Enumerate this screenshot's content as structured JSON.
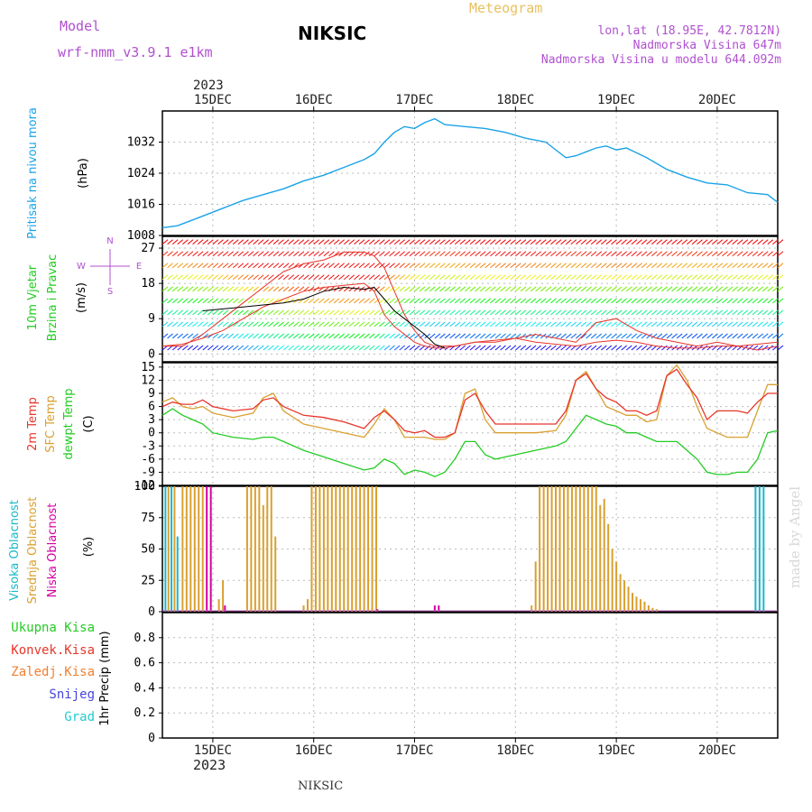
{
  "header": {
    "model_label": "Model",
    "model_value": "wrf-nmm_v3.9.1 e1km",
    "station": "NIKSIC",
    "meteogram": "Meteogram",
    "coords": "lon,lat (18.95E, 42.7812N)",
    "elevation": "Nadmorska Visina 647m",
    "model_elevation": "Nadmorska Visina u modelu 644.092m",
    "watermark": "made by Angel",
    "footer_station": "NIKSIC"
  },
  "colors": {
    "pressure": "#1aa3e8",
    "temp2m": "#e8352a",
    "sfc_temp": "#d9a030",
    "dewpoint": "#22cc22",
    "high_cloud": "#1ab8c8",
    "mid_cloud": "#d9a030",
    "low_cloud": "#d400a0",
    "total_precip": "#22cc22",
    "conv_precip": "#e8352a",
    "frozen_precip": "#f08030",
    "snow": "#4444dd",
    "hail": "#22cccc",
    "purple_text": "#b050d0",
    "gold_text": "#e8c060"
  },
  "chart_data": [
    {
      "type": "line",
      "id": "pressure",
      "ylabel_left": "Pritisak na nivou mora",
      "unit": "(hPa)",
      "ylim": [
        1008,
        1040
      ],
      "yticks": [
        1008,
        1016,
        1024,
        1032
      ],
      "x_unit": "days since 15DEC 00UTC",
      "series": [
        {
          "name": "Pritisak",
          "x": [
            -0.5,
            -0.35,
            -0.2,
            -0.05,
            0.1,
            0.3,
            0.5,
            0.7,
            0.9,
            1.1,
            1.3,
            1.5,
            1.6,
            1.7,
            1.8,
            1.9,
            2.0,
            2.1,
            2.2,
            2.3,
            2.5,
            2.7,
            2.9,
            3.1,
            3.3,
            3.5,
            3.6,
            3.7,
            3.8,
            3.9,
            4.0,
            4.1,
            4.3,
            4.5,
            4.7,
            4.9,
            5.1,
            5.3,
            5.5,
            5.6
          ],
          "values": [
            1010,
            1010.5,
            1012,
            1013.5,
            1015,
            1017,
            1018.5,
            1020,
            1022,
            1023.5,
            1025.5,
            1027.5,
            1029,
            1032,
            1034.5,
            1036,
            1035.5,
            1037,
            1038,
            1036.5,
            1036,
            1035.5,
            1034.5,
            1033,
            1032,
            1028,
            1028.5,
            1029.5,
            1030.5,
            1031,
            1030,
            1030.5,
            1028,
            1025,
            1023,
            1021.5,
            1021,
            1019,
            1018.5,
            1016.5
          ]
        }
      ]
    },
    {
      "type": "line",
      "id": "wind",
      "ylabel_left_1": "10m Vjetar",
      "ylabel_left_2": "Brzina i Pravac",
      "unit": "(m/s)",
      "compass": {
        "n": "N",
        "s": "S",
        "w": "W",
        "e": "E"
      },
      "ylim": [
        -2,
        30
      ],
      "yticks": [
        0,
        9,
        18,
        27
      ],
      "series": [
        {
          "name": "speed",
          "x": [
            -0.5,
            -0.3,
            -0.1,
            0.1,
            0.3,
            0.5,
            0.7,
            0.9,
            1.1,
            1.3,
            1.5,
            1.6,
            1.7,
            1.8,
            1.9,
            2.0,
            2.1,
            2.2,
            2.3,
            2.4,
            2.6,
            2.8,
            3.0,
            3.2,
            3.4,
            3.6,
            3.8,
            4.0,
            4.2,
            4.4,
            4.6,
            4.8,
            5.0,
            5.2,
            5.4,
            5.6
          ],
          "values": [
            2,
            2.5,
            4,
            6,
            9,
            12,
            14,
            16,
            17,
            17.5,
            18,
            16,
            10,
            7,
            5,
            3,
            2,
            1.5,
            1.5,
            2,
            3,
            3.5,
            4,
            3,
            2.5,
            2,
            3,
            3.5,
            3,
            2,
            1.5,
            1.5,
            2,
            2,
            2.5,
            3
          ]
        },
        {
          "name": "gust",
          "x": [
            -0.5,
            -0.3,
            -0.1,
            0.1,
            0.3,
            0.5,
            0.7,
            0.9,
            1.1,
            1.3,
            1.5,
            1.6,
            1.7,
            1.8,
            1.9,
            2.0,
            2.1,
            2.2,
            2.4,
            2.6,
            2.8,
            3.0,
            3.2,
            3.4,
            3.6,
            3.8,
            4.0,
            4.2,
            4.4,
            4.6,
            4.8,
            5.0,
            5.2,
            5.4,
            5.6
          ],
          "values": [
            2,
            2,
            5,
            9,
            13,
            17,
            21,
            23,
            24,
            26,
            26,
            25,
            22,
            16,
            10,
            6,
            3,
            2,
            2,
            3,
            3,
            4,
            5,
            4,
            3,
            8,
            9,
            6,
            4,
            3,
            2,
            3,
            2,
            1,
            2
          ]
        },
        {
          "name": "model_mean",
          "x": [
            -0.1,
            0.1,
            0.3,
            0.5,
            0.7,
            0.9,
            1.1,
            1.3,
            1.5,
            1.6,
            1.7,
            1.8,
            1.9,
            2.0,
            2.1,
            2.2,
            2.3
          ],
          "values": [
            11,
            11.5,
            12,
            12.5,
            13,
            14,
            16,
            17,
            16.5,
            17,
            14,
            11,
            9,
            7,
            5,
            2.5,
            1.5
          ]
        }
      ]
    },
    {
      "type": "line",
      "id": "temperature",
      "ylabel_left_1": "2m Temp",
      "ylabel_left_2": "SFC Temp",
      "ylabel_left_3": "dewpt Temp",
      "unit": "(C)",
      "ylim": [
        -12,
        16
      ],
      "yticks": [
        -12,
        -9,
        -6,
        -3,
        0,
        3,
        6,
        9,
        12,
        15
      ],
      "series": [
        {
          "name": "2m Temp",
          "x": [
            -0.5,
            -0.4,
            -0.3,
            -0.2,
            -0.1,
            0.0,
            0.2,
            0.4,
            0.5,
            0.6,
            0.7,
            0.9,
            1.1,
            1.3,
            1.5,
            1.6,
            1.7,
            1.8,
            1.9,
            2.0,
            2.1,
            2.2,
            2.3,
            2.4,
            2.5,
            2.6,
            2.7,
            2.8,
            3.0,
            3.2,
            3.4,
            3.5,
            3.6,
            3.7,
            3.8,
            3.9,
            4.0,
            4.1,
            4.2,
            4.3,
            4.4,
            4.5,
            4.6,
            4.7,
            4.8,
            4.9,
            5.0,
            5.1,
            5.2,
            5.3,
            5.4,
            5.5,
            5.6
          ],
          "values": [
            6,
            7,
            6.5,
            6.5,
            7.5,
            6,
            5,
            5.5,
            7.5,
            8,
            6,
            4,
            3.5,
            2.5,
            1,
            3.5,
            5,
            3,
            0.5,
            0,
            0.5,
            -1,
            -1,
            0,
            7.5,
            9,
            5,
            2,
            2,
            2,
            2,
            5,
            12,
            13.5,
            10,
            8,
            7,
            5,
            5,
            4,
            5,
            13,
            14.5,
            11,
            8,
            3,
            5,
            5,
            5,
            4.5,
            7,
            9,
            9
          ]
        },
        {
          "name": "SFC Temp",
          "x": [
            -0.5,
            -0.4,
            -0.3,
            -0.2,
            -0.1,
            0.0,
            0.2,
            0.4,
            0.5,
            0.6,
            0.7,
            0.9,
            1.1,
            1.3,
            1.5,
            1.6,
            1.7,
            1.8,
            1.9,
            2.0,
            2.1,
            2.2,
            2.3,
            2.4,
            2.5,
            2.6,
            2.7,
            2.8,
            3.0,
            3.2,
            3.4,
            3.5,
            3.6,
            3.7,
            3.8,
            3.9,
            4.0,
            4.1,
            4.2,
            4.3,
            4.4,
            4.5,
            4.6,
            4.7,
            4.8,
            4.9,
            5.0,
            5.1,
            5.2,
            5.3,
            5.4,
            5.5,
            5.6
          ],
          "values": [
            7,
            8,
            6,
            5.5,
            6,
            4.5,
            3.5,
            4.5,
            8,
            9,
            5,
            2,
            1,
            0,
            -1,
            2,
            5.5,
            3,
            -1,
            -1,
            -1,
            -1.5,
            -1.5,
            0,
            9,
            10,
            3,
            0,
            0,
            0,
            0.5,
            4,
            12,
            14,
            10,
            6,
            5,
            4,
            4,
            2.5,
            3,
            13,
            15.5,
            12,
            6,
            1,
            0,
            -1,
            -1,
            -1,
            5,
            11,
            11
          ]
        },
        {
          "name": "dewpt Temp",
          "x": [
            -0.5,
            -0.4,
            -0.3,
            -0.2,
            -0.1,
            0.0,
            0.2,
            0.4,
            0.5,
            0.6,
            0.7,
            0.9,
            1.1,
            1.3,
            1.5,
            1.6,
            1.7,
            1.8,
            1.9,
            2.0,
            2.1,
            2.2,
            2.3,
            2.4,
            2.5,
            2.6,
            2.7,
            2.8,
            3.0,
            3.2,
            3.4,
            3.5,
            3.6,
            3.7,
            3.8,
            3.9,
            4.0,
            4.1,
            4.2,
            4.3,
            4.4,
            4.5,
            4.6,
            4.7,
            4.8,
            4.9,
            5.0,
            5.1,
            5.2,
            5.3,
            5.4,
            5.5,
            5.6
          ],
          "values": [
            4,
            5.5,
            4,
            3,
            2,
            0,
            -1,
            -1.5,
            -1,
            -1,
            -2,
            -4,
            -5.5,
            -7,
            -8.5,
            -8,
            -6,
            -7,
            -9.5,
            -8.5,
            -9,
            -10,
            -9,
            -6,
            -2,
            -2,
            -5,
            -6,
            -5,
            -4,
            -3,
            -2,
            1,
            4,
            3,
            2,
            1.5,
            0,
            0,
            -1,
            -2,
            -2,
            -2,
            -4,
            -6,
            -9,
            -9.5,
            -9.5,
            -9,
            -9,
            -6,
            0,
            0.5
          ]
        }
      ]
    },
    {
      "type": "bar",
      "id": "clouds",
      "ylabel_left_1": "Visoka Oblacnost",
      "ylabel_left_2": "Srednja Oblacnost",
      "ylabel_left_3": "Niska Oblacnost",
      "unit": "(%)",
      "ylim": [
        0,
        100
      ],
      "yticks": [
        0,
        25,
        50,
        75,
        100
      ],
      "series": [
        {
          "name": "Visoka",
          "x": [
            -0.47,
            -0.41,
            -0.35,
            5.38,
            5.42,
            5.46
          ],
          "values": [
            100,
            100,
            60,
            100,
            100,
            100
          ]
        },
        {
          "name": "Srednja",
          "x": [
            -0.44,
            -0.38,
            -0.3,
            -0.26,
            -0.22,
            -0.18,
            -0.14,
            -0.1,
            0.06,
            0.1,
            0.34,
            0.38,
            0.42,
            0.46,
            0.5,
            0.54,
            0.58,
            0.62,
            0.9,
            0.94,
            0.98,
            1.02,
            1.06,
            1.1,
            1.14,
            1.18,
            1.22,
            1.26,
            1.3,
            1.34,
            1.38,
            1.42,
            1.46,
            1.5,
            1.54,
            1.58,
            1.62,
            3.16,
            3.2,
            3.24,
            3.28,
            3.32,
            3.36,
            3.4,
            3.44,
            3.48,
            3.52,
            3.56,
            3.6,
            3.64,
            3.68,
            3.72,
            3.76,
            3.8,
            3.84,
            3.88,
            3.92,
            3.96,
            4.0,
            4.04,
            4.08,
            4.12,
            4.16,
            4.2,
            4.24,
            4.28,
            4.32,
            4.36,
            4.4
          ],
          "values": [
            100,
            100,
            100,
            100,
            100,
            100,
            100,
            100,
            10,
            25,
            100,
            100,
            100,
            100,
            85,
            100,
            100,
            60,
            5,
            10,
            100,
            100,
            100,
            100,
            100,
            100,
            100,
            100,
            100,
            100,
            100,
            100,
            100,
            100,
            100,
            100,
            100,
            5,
            40,
            100,
            100,
            100,
            100,
            100,
            100,
            100,
            100,
            100,
            100,
            100,
            100,
            100,
            100,
            100,
            85,
            90,
            70,
            50,
            40,
            30,
            25,
            20,
            15,
            12,
            10,
            8,
            5,
            3,
            2
          ]
        },
        {
          "name": "Niska",
          "x": [
            -0.06,
            -0.02,
            0.12,
            1.63,
            2.2,
            2.24
          ],
          "values": [
            100,
            100,
            5,
            2,
            5,
            5
          ]
        }
      ]
    },
    {
      "type": "bar",
      "id": "precip",
      "ylabel_left_1": "Ukupna Kisa",
      "ylabel_left_2": "Konvek.Kisa",
      "ylabel_left_3": "Zaledj.Kisa",
      "ylabel_left_4": "Snijeg",
      "ylabel_left_5": "Grad",
      "ylabel": "1hr Precip (mm)",
      "ylim": [
        0,
        1.0
      ],
      "yticks": [
        0,
        0.2,
        0.4,
        0.6,
        0.8
      ],
      "series": [
        {
          "name": "Ukupna Kisa",
          "x": [],
          "values": []
        }
      ]
    }
  ],
  "axis": {
    "year_top": "2023",
    "year_bottom": "2023",
    "days": [
      "15DEC",
      "16DEC",
      "17DEC",
      "18DEC",
      "19DEC",
      "20DEC"
    ],
    "xlim": [
      -0.5,
      5.6
    ]
  }
}
